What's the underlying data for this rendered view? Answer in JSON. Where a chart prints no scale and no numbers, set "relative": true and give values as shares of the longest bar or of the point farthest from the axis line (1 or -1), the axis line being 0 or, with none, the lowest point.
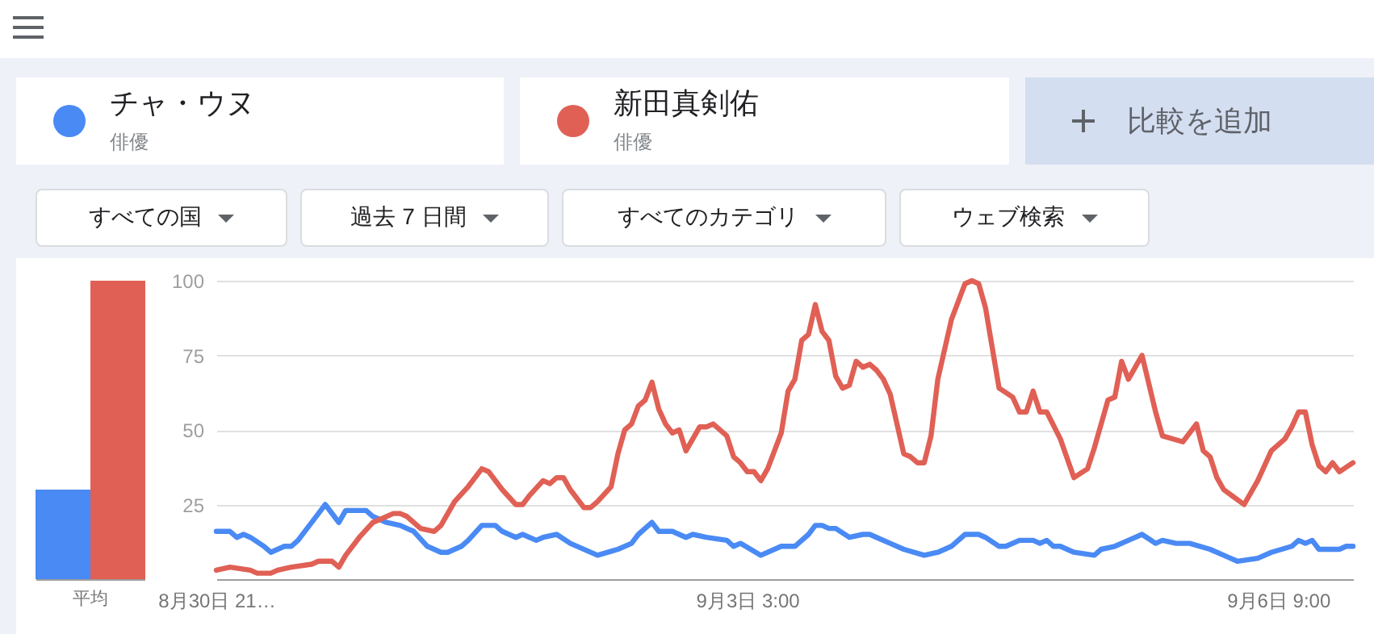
{
  "chart_data": [
    {
      "type": "other",
      "annotations": [
        "俳優",
        "俳優",
        "比較を追加",
        "すべての国",
        "過去 7 日間",
        "すべてのカテゴリ",
        "ウェブ検索"
      ]
    },
    {
      "type": "bar",
      "categories": [
        "平均"
      ],
      "relative": true,
      "series": [
        {
          "color": "#4a8af4",
          "values": [
            0.3
          ]
        },
        {
          "color": "#e06055",
          "values": [
            1
          ]
        }
      ]
    },
    {
      "type": "line",
      "xlim": [
        "--08-30T21:00",
        "--09-06T20:00"
      ],
      "xticks": [
        {
          "value": "--08-30T21:00",
          "label": "8月30日 21…"
        },
        {
          "value": "--09-03T03:00",
          "label": "9月3日 3:00"
        },
        {
          "value": "--09-06T09:00",
          "label": "9月6日 9:00"
        }
      ],
      "ylim": [
        0,
        100
      ],
      "yticks": [
        25,
        50,
        75,
        100
      ],
      "grid": "y",
      "series": [
        {
          "name": "チャ・ウヌ",
          "color": "#4a8af4",
          "x": [
            "--08-30T21:00",
            "--08-30T23:00",
            "--08-31T00:00",
            "--08-31T01:00",
            "--08-31T02:00",
            "--08-31T04:00",
            "--08-31T05:00",
            "--08-31T07:00",
            "--08-31T08:00",
            "--08-31T09:00",
            "--08-31T12:00",
            "--08-31T13:00",
            "--08-31T15:00",
            "--08-31T16:00",
            "--08-31T19:00",
            "--08-31T20:00",
            "--08-31T22:00",
            "--09-01T00:00",
            "--09-01T02:00",
            "--09-01T04:00",
            "--09-01T06:00",
            "--09-01T07:00",
            "--09-01T09:00",
            "--09-01T10:00",
            "--09-01T12:00",
            "--09-01T14:00",
            "--09-01T15:00",
            "--09-01T17:00",
            "--09-01T18:00",
            "--09-01T20:00",
            "--09-01T21:00",
            "--09-01T23:00",
            "--09-02T01:00",
            "--09-02T05:00",
            "--09-02T08:00",
            "--09-02T10:00",
            "--09-02T11:00",
            "--09-02T13:00",
            "--09-02T14:00",
            "--09-02T16:00",
            "--09-02T18:00",
            "--09-02T19:00",
            "--09-02T21:00",
            "--09-03T00:00",
            "--09-03T01:00",
            "--09-03T02:00",
            "--09-03T05:00",
            "--09-03T08:00",
            "--09-03T10:00",
            "--09-03T12:00",
            "--09-03T13:00",
            "--09-03T14:00",
            "--09-03T15:00",
            "--09-03T16:00",
            "--09-03T18:00",
            "--09-03T20:00",
            "--09-03T21:00",
            "--09-03T22:00",
            "--09-04T00:00",
            "--09-04T02:00",
            "--09-04T05:00",
            "--09-04T07:00",
            "--09-04T09:00",
            "--09-04T11:00",
            "--09-04T12:00",
            "--09-04T13:00",
            "--09-04T14:00",
            "--09-04T16:00",
            "--09-04T17:00",
            "--09-04T19:00",
            "--09-04T21:00",
            "--09-04T22:00",
            "--09-04T23:00",
            "--09-05T00:00",
            "--09-05T01:00",
            "--09-05T03:00",
            "--09-05T06:00",
            "--09-05T07:00",
            "--09-05T09:00",
            "--09-05T11:00",
            "--09-05T13:00",
            "--09-05T15:00",
            "--09-05T16:00",
            "--09-05T18:00",
            "--09-05T20:00",
            "--09-05T23:00",
            "--09-06T01:00",
            "--09-06T03:00",
            "--09-06T06:00",
            "--09-06T08:00",
            "--09-06T11:00",
            "--09-06T12:00",
            "--09-06T13:00",
            "--09-06T14:00",
            "--09-06T15:00",
            "--09-06T18:00",
            "--09-06T19:00",
            "--09-06T20:00"
          ],
          "values": [
            16,
            16,
            14,
            15,
            14,
            11,
            9,
            11,
            11,
            13,
            22,
            25,
            19,
            23,
            23,
            21,
            19,
            18,
            16,
            11,
            9,
            9,
            11,
            13,
            18,
            18,
            16,
            14,
            15,
            13,
            14,
            15,
            12,
            8,
            10,
            12,
            15,
            19,
            16,
            16,
            14,
            15,
            14,
            13,
            11,
            12,
            8,
            11,
            11,
            15,
            18,
            18,
            17,
            17,
            14,
            15,
            15,
            14,
            12,
            10,
            8,
            9,
            11,
            15,
            15,
            15,
            14,
            11,
            11,
            13,
            13,
            12,
            13,
            11,
            11,
            9,
            8,
            10,
            11,
            13,
            15,
            12,
            13,
            12,
            12,
            10,
            8,
            6,
            7,
            9,
            11,
            13,
            12,
            13,
            10,
            10,
            11,
            11
          ]
        },
        {
          "name": "新田真剣佑",
          "color": "#e06055",
          "x": [
            "--08-30T21:00",
            "--08-30T23:00",
            "--08-31T02:00",
            "--08-31T03:00",
            "--08-31T05:00",
            "--08-31T06:00",
            "--08-31T08:00",
            "--08-31T11:00",
            "--08-31T12:00",
            "--08-31T14:00",
            "--08-31T15:00",
            "--08-31T16:00",
            "--08-31T18:00",
            "--08-31T20:00",
            "--08-31T23:00",
            "--09-01T00:00",
            "--09-01T01:00",
            "--09-01T03:00",
            "--09-01T05:00",
            "--09-01T06:00",
            "--09-01T07:00",
            "--09-01T08:00",
            "--09-01T10:00",
            "--09-01T12:00",
            "--09-01T13:00",
            "--09-01T15:00",
            "--09-01T17:00",
            "--09-01T18:00",
            "--09-01T19:00",
            "--09-01T21:00",
            "--09-01T22:00",
            "--09-01T23:00",
            "--09-02T00:00",
            "--09-02T01:00",
            "--09-02T03:00",
            "--09-02T04:00",
            "--09-02T05:00",
            "--09-02T07:00",
            "--09-02T08:00",
            "--09-02T09:00",
            "--09-02T10:00",
            "--09-02T11:00",
            "--09-02T12:00",
            "--09-02T13:00",
            "--09-02T14:00",
            "--09-02T15:00",
            "--09-02T16:00",
            "--09-02T17:00",
            "--09-02T18:00",
            "--09-02T20:00",
            "--09-02T21:00",
            "--09-02T22:00",
            "--09-03T00:00",
            "--09-03T01:00",
            "--09-03T02:00",
            "--09-03T03:00",
            "--09-03T04:00",
            "--09-03T05:00",
            "--09-03T06:00",
            "--09-03T08:00",
            "--09-03T09:00",
            "--09-03T10:00",
            "--09-03T11:00",
            "--09-03T12:00",
            "--09-03T13:00",
            "--09-03T14:00",
            "--09-03T15:00",
            "--09-03T16:00",
            "--09-03T17:00",
            "--09-03T18:00",
            "--09-03T19:00",
            "--09-03T20:00",
            "--09-03T21:00",
            "--09-03T22:00",
            "--09-03T23:00",
            "--09-04T00:00",
            "--09-04T02:00",
            "--09-04T03:00",
            "--09-04T04:00",
            "--09-04T05:00",
            "--09-04T06:00",
            "--09-04T07:00",
            "--09-04T09:00",
            "--09-04T11:00",
            "--09-04T12:00",
            "--09-04T13:00",
            "--09-04T14:00",
            "--09-04T16:00",
            "--09-04T18:00",
            "--09-04T19:00",
            "--09-04T20:00",
            "--09-04T21:00",
            "--09-04T22:00",
            "--09-04T23:00",
            "--09-05T01:00",
            "--09-05T03:00",
            "--09-05T05:00",
            "--09-05T06:00",
            "--09-05T08:00",
            "--09-05T09:00",
            "--09-05T10:00",
            "--09-05T11:00",
            "--09-05T12:00",
            "--09-05T13:00",
            "--09-05T15:00",
            "--09-05T16:00",
            "--09-05T19:00",
            "--09-05T21:00",
            "--09-05T22:00",
            "--09-05T23:00",
            "--09-06T00:00",
            "--09-06T01:00",
            "--09-06T04:00",
            "--09-06T06:00",
            "--09-06T08:00",
            "--09-06T10:00",
            "--09-06T11:00",
            "--09-06T12:00",
            "--09-06T13:00",
            "--09-06T14:00",
            "--09-06T15:00",
            "--09-06T16:00",
            "--09-06T17:00",
            "--09-06T18:00",
            "--09-06T20:00"
          ],
          "values": [
            3,
            4,
            3,
            2,
            2,
            3,
            4,
            5,
            6,
            6,
            4,
            8,
            14,
            19,
            22,
            22,
            21,
            17,
            16,
            18,
            22,
            26,
            31,
            37,
            36,
            30,
            25,
            25,
            28,
            33,
            32,
            34,
            34,
            30,
            24,
            24,
            26,
            31,
            42,
            50,
            52,
            58,
            60,
            66,
            57,
            52,
            49,
            50,
            43,
            51,
            51,
            52,
            48,
            41,
            39,
            36,
            36,
            33,
            37,
            49,
            63,
            67,
            80,
            82,
            92,
            83,
            80,
            68,
            64,
            65,
            73,
            71,
            72,
            70,
            67,
            62,
            42,
            41,
            39,
            39,
            48,
            67,
            87,
            99,
            100,
            99,
            91,
            64,
            61,
            56,
            56,
            63,
            56,
            56,
            47,
            34,
            37,
            44,
            60,
            61,
            73,
            67,
            71,
            75,
            56,
            48,
            46,
            52,
            43,
            41,
            34,
            30,
            25,
            33,
            43,
            47,
            51,
            56,
            56,
            45,
            38,
            36,
            39,
            36,
            39
          ]
        }
      ]
    }
  ]
}
